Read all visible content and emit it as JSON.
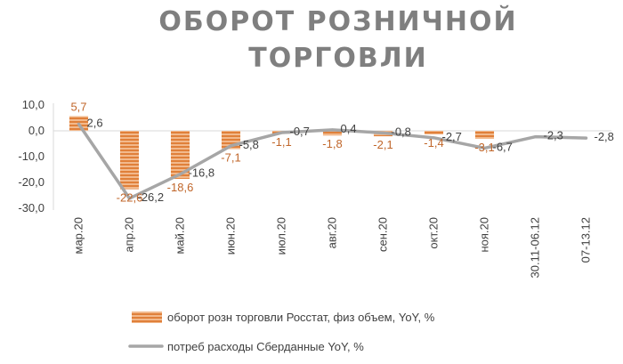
{
  "chart_data": {
    "type": "bar",
    "title": "ОБОРОТ РОЗНИЧНОЙ ТОРГОВЛИ",
    "categories": [
      "мар.20",
      "апр.20",
      "май.20",
      "июн.20",
      "июл.20",
      "авг.20",
      "сен.20",
      "окт.20",
      "ноя.20",
      "30.11-06.12",
      "07-13.12"
    ],
    "ylim": [
      -30,
      10
    ],
    "yticks": [
      "10,0",
      "0,0",
      "-10,0",
      "-20,0",
      "-30,0"
    ],
    "grid": false,
    "legend_position": "bottom",
    "series": [
      {
        "name": "оборот розн торговли Росстат, физ объем, YoY, %",
        "type": "bar",
        "color": "#e0803a",
        "values": [
          5.7,
          -22.6,
          -18.6,
          -7.1,
          -1.1,
          -1.8,
          -2.1,
          -1.4,
          -3.1,
          null,
          null
        ],
        "labels": [
          "5,7",
          "-22,6",
          "-18,6",
          "-7,1",
          "-1,1",
          "-1,8",
          "-2,1",
          "-1,4",
          "-3,1",
          "",
          ""
        ]
      },
      {
        "name": "потреб расходы Сберданные YoY, %",
        "type": "line",
        "color": "#a6a6a6",
        "values": [
          2.6,
          -26.2,
          -16.8,
          -5.8,
          -0.7,
          0.4,
          -0.8,
          -2.7,
          -6.7,
          -2.3,
          -2.8
        ],
        "labels": [
          "2,6",
          "-26,2",
          "-16,8",
          "-5,8",
          "-0,7",
          "0,4",
          "-0,8",
          "-2,7",
          "-6,7",
          "-2,3",
          "-2,8"
        ]
      }
    ]
  }
}
